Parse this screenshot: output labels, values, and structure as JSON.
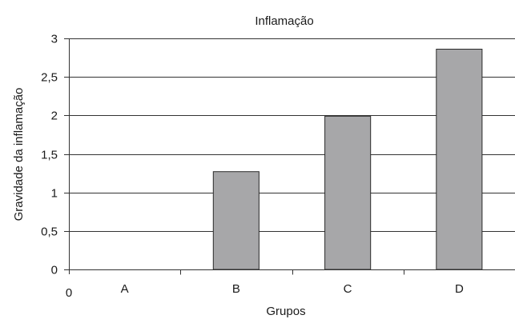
{
  "chart_data": {
    "type": "bar",
    "title": "Inflamação",
    "xlabel": "Grupos",
    "ylabel": "Gravidade da inflamação",
    "categories": [
      "A",
      "B",
      "C",
      "D"
    ],
    "values": [
      0,
      1.27,
      1.99,
      2.86
    ],
    "ylim": [
      0,
      3
    ],
    "y_ticks": [
      0,
      0.5,
      1,
      1.5,
      2,
      2.5,
      3
    ],
    "y_tick_labels": [
      "0",
      "0,5",
      "1",
      "1,5",
      "2",
      "2,5",
      "3"
    ],
    "x_origin_label": "0",
    "grid": true,
    "legend": "none",
    "bar_color": "#a7a7a9"
  }
}
